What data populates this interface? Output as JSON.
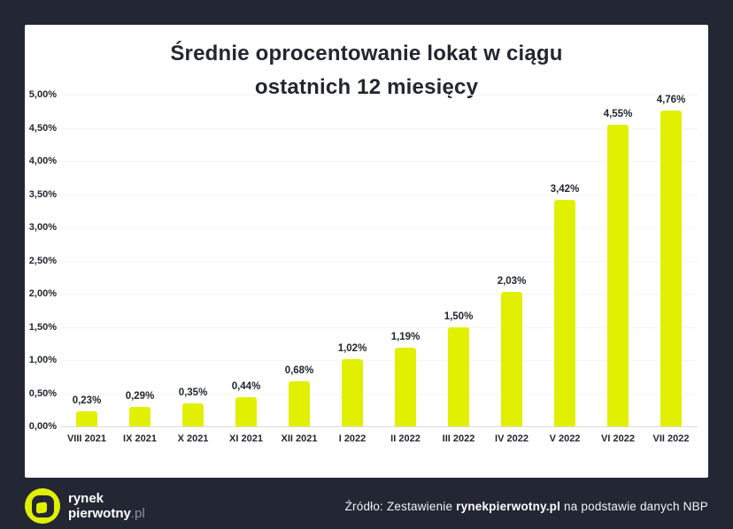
{
  "title": {
    "line1": "Średnie oprocentowanie lokat w ciągu",
    "line2": "ostatnich 12 miesięcy"
  },
  "chart_data": {
    "type": "bar",
    "title": "Średnie oprocentowanie lokat w ciągu ostatnich 12 miesięcy",
    "categories": [
      "VIII 2021",
      "IX 2021",
      "X 2021",
      "XI 2021",
      "XII 2021",
      "I 2022",
      "II 2022",
      "III 2022",
      "IV 2022",
      "V 2022",
      "VI 2022",
      "VII 2022"
    ],
    "values": [
      0.23,
      0.29,
      0.35,
      0.44,
      0.68,
      1.02,
      1.19,
      1.5,
      2.03,
      3.42,
      4.55,
      4.76
    ],
    "value_labels": [
      "0,23%",
      "0,29%",
      "0,35%",
      "0,44%",
      "0,68%",
      "1,02%",
      "1,19%",
      "1,50%",
      "2,03%",
      "3,42%",
      "4,55%",
      "4,76%"
    ],
    "y_ticks": [
      "5,00%",
      "4,50%",
      "4,00%",
      "3,50%",
      "3,00%",
      "2,50%",
      "2,00%",
      "1,50%",
      "1,00%",
      "0,50%",
      "0,00%"
    ],
    "xlabel": "",
    "ylabel": "",
    "ylim": [
      0,
      5
    ],
    "grid": true,
    "legend": "none",
    "bar_color": "#e1f000"
  },
  "footer": {
    "logo": {
      "line1": "rynek",
      "line2_bold": "pierwotny",
      "line2_suffix": ".pl"
    },
    "source_prefix": "Źródło: Zestawienie ",
    "source_bold": "rynekpierwotny.pl",
    "source_suffix": " na podstawie danych NBP"
  },
  "colors": {
    "background": "#232734",
    "card": "#ffffff",
    "bar": "#e1f000",
    "text_dark": "#23262f",
    "footer_text": "#f2f3f5"
  }
}
